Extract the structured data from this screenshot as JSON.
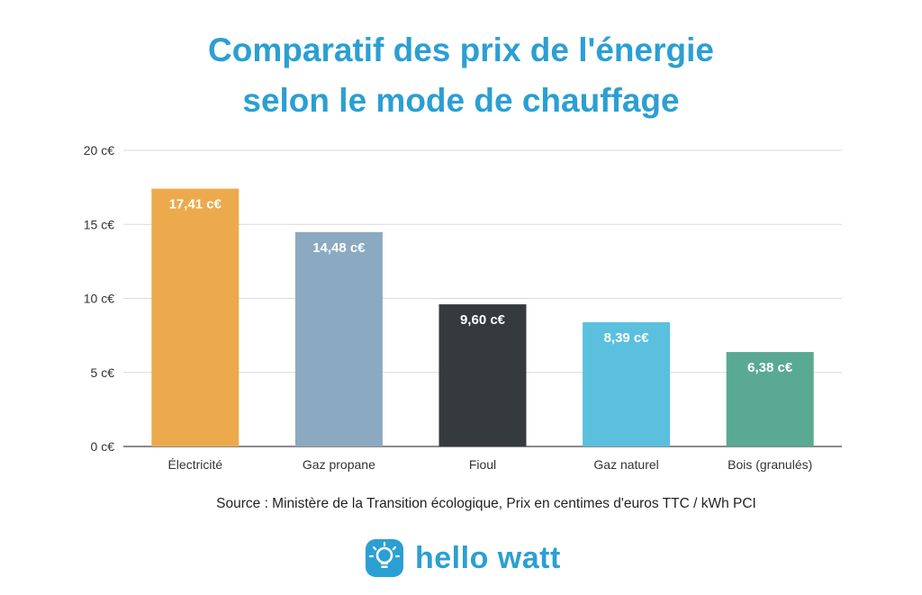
{
  "title_line1": "Comparatif des prix de l'énergie",
  "title_line2": "selon le mode de chauffage",
  "source": "Source : Ministère de la Transition écologique, Prix en centimes d'euros TTC / kWh PCI",
  "brand": {
    "name": "hello watt",
    "icon": "lightbulb-icon",
    "color": "#2b9fd3"
  },
  "chart_data": {
    "type": "bar",
    "categories": [
      "Électricité",
      "Gaz propane",
      "Fioul",
      "Gaz naturel",
      "Bois (granulés)"
    ],
    "values": [
      17.41,
      14.48,
      9.6,
      8.39,
      6.38
    ],
    "value_labels": [
      "17,41 c€",
      "14,48 c€",
      "9,60 c€",
      "8,39 c€",
      "6,38 c€"
    ],
    "colors": [
      "#edaa4d",
      "#8ba9c0",
      "#353a3d",
      "#5bc0de",
      "#5aa992"
    ],
    "yticks": [
      0,
      5,
      10,
      15,
      20
    ],
    "ytick_labels": [
      "0 c€",
      "5 c€",
      "10 c€",
      "15 c€",
      "20 c€"
    ],
    "ylim": [
      0,
      20
    ],
    "grid": true,
    "legend": false
  }
}
